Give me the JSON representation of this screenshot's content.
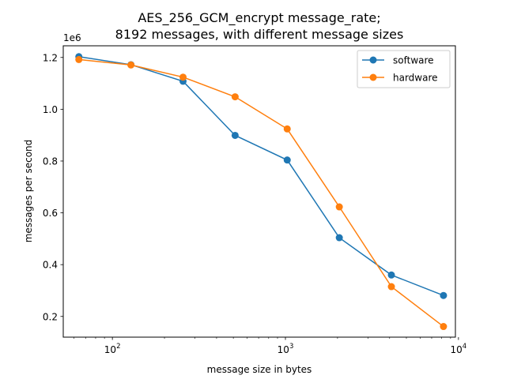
{
  "chart_data": {
    "type": "line",
    "title_line1": "AES_256_GCM_encrypt message_rate;",
    "title_line2": "8192 messages, with different message sizes",
    "xlabel": "message size in bytes",
    "ylabel": "messages per second",
    "y_offset_text": "1e6",
    "x_scale": "log",
    "x_ticks": [
      100,
      1000,
      10000
    ],
    "x_tick_labels": [
      "10",
      "10",
      "10"
    ],
    "x_tick_exponents": [
      "2",
      "3",
      "4"
    ],
    "xlim": [
      52,
      9600
    ],
    "y_ticks": [
      0.2,
      0.4,
      0.6,
      0.8,
      1.0,
      1.2
    ],
    "y_tick_labels": [
      "0.2",
      "0.4",
      "0.6",
      "0.8",
      "1.0",
      "1.2"
    ],
    "ylim": [
      0.12,
      1.245
    ],
    "grid": false,
    "legend_position": "top-right",
    "x": [
      64,
      128,
      256,
      512,
      1024,
      2048,
      4096,
      8192
    ],
    "series": [
      {
        "name": "software",
        "color": "#1f77b4",
        "values": [
          1.203,
          1.172,
          1.108,
          0.899,
          0.804,
          0.504,
          0.36,
          0.281
        ]
      },
      {
        "name": "hardware",
        "color": "#ff7f0e",
        "values": [
          1.192,
          1.171,
          1.124,
          1.048,
          0.924,
          0.623,
          0.315,
          0.161
        ]
      }
    ]
  }
}
